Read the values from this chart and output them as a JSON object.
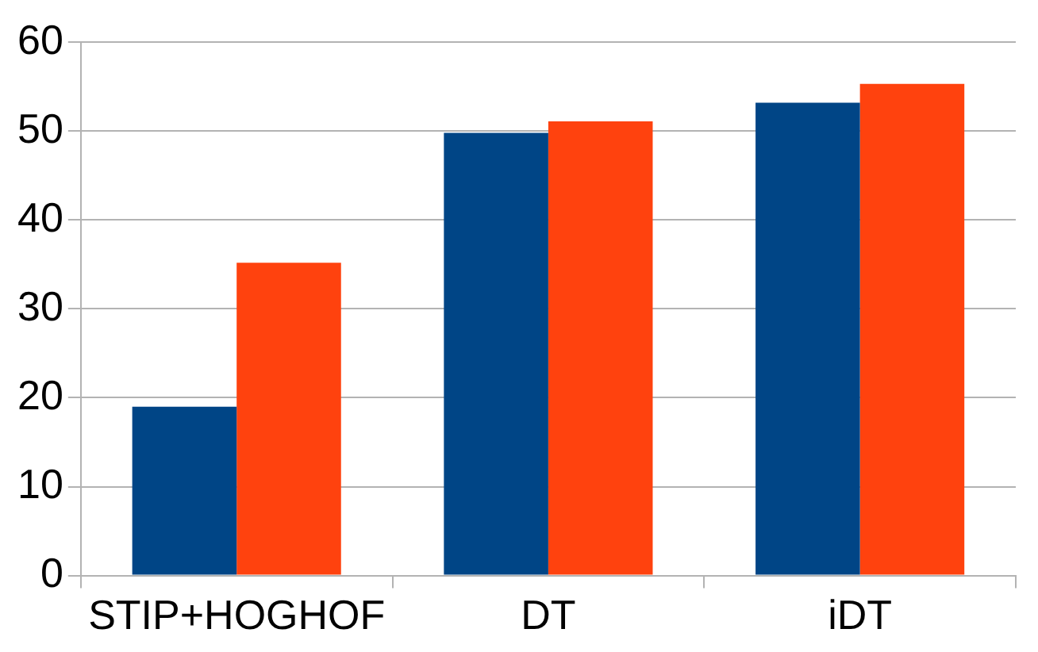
{
  "chart_data": {
    "type": "bar",
    "categories": [
      "STIP+HOGHOF",
      "DT",
      "iDT"
    ],
    "series": [
      {
        "color": "#004586",
        "values": [
          19.0,
          49.8,
          53.2
        ]
      },
      {
        "color": "#ff420e",
        "values": [
          35.2,
          51.1,
          55.3
        ]
      }
    ],
    "ylim": [
      0,
      60
    ],
    "yticks": [
      0,
      10,
      20,
      30,
      40,
      50,
      60
    ],
    "grid": "y",
    "legend": false
  }
}
